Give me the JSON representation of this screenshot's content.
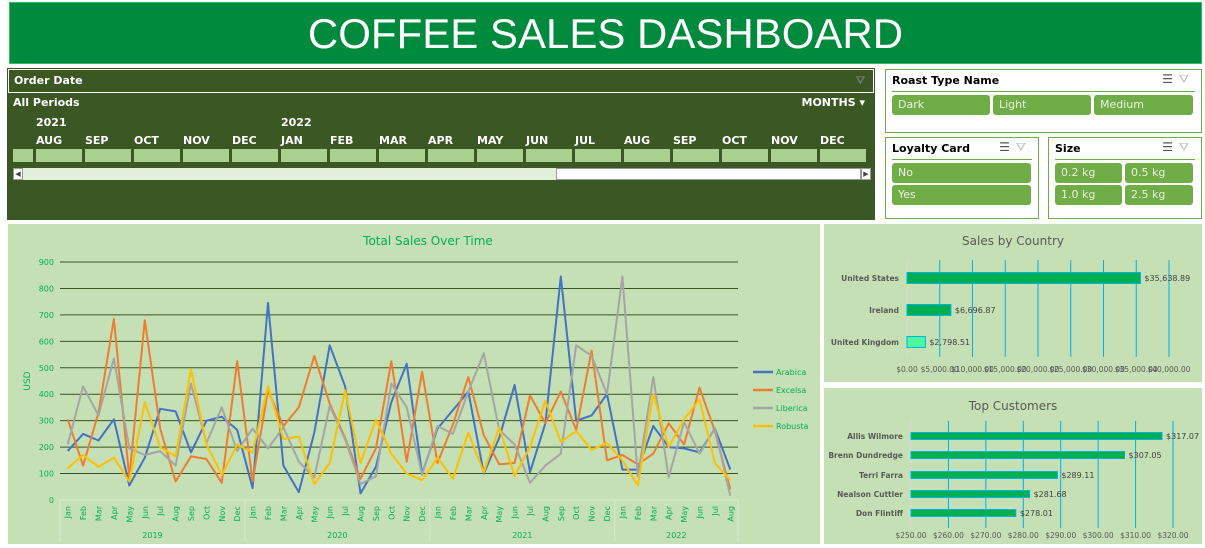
{
  "title": "COFFEE SALES DASHBOARD",
  "timeline": {
    "header": "Order Date",
    "periods": "All Periods",
    "granularity": "MONTHS",
    "years": [
      {
        "label": "2021",
        "at": 1
      },
      {
        "label": "2022",
        "at": 6
      }
    ],
    "months": [
      "AUG",
      "SEP",
      "OCT",
      "NOV",
      "DEC",
      "JAN",
      "FEB",
      "MAR",
      "APR",
      "MAY",
      "JUN",
      "JUL",
      "AUG",
      "SEP",
      "OCT",
      "NOV",
      "DEC"
    ]
  },
  "slicers": {
    "roast": {
      "title": "Roast Type Name",
      "items": [
        "Dark",
        "Light",
        "Medium"
      ]
    },
    "loyalty": {
      "title": "Loyalty Card",
      "items": [
        "No",
        "Yes"
      ]
    },
    "size": {
      "title": "Size",
      "items": [
        "0.2 kg",
        "0.5 kg",
        "1.0 kg",
        "2.5 kg"
      ]
    }
  },
  "chart_data": [
    {
      "type": "line",
      "title": "Total Sales Over Time",
      "ylabel": "USD",
      "ylim": [
        0,
        900
      ],
      "yticks": [
        0,
        100,
        200,
        300,
        400,
        500,
        600,
        700,
        800,
        900
      ],
      "grid": true,
      "legend": "right",
      "years": [
        "2019",
        "2020",
        "2021",
        "2022"
      ],
      "months": [
        "Jan",
        "Feb",
        "Mar",
        "Apr",
        "May",
        "Jun",
        "Jul",
        "Aug",
        "Sep",
        "Oct",
        "Nov",
        "Dec"
      ],
      "series": [
        {
          "name": "Arabica",
          "color": "#4472c4",
          "values": [
            185,
            250,
            225,
            305,
            55,
            160,
            345,
            335,
            180,
            300,
            315,
            265,
            45,
            745,
            130,
            30,
            255,
            585,
            430,
            25,
            125,
            370,
            515,
            100,
            270,
            340,
            410,
            100,
            235,
            435,
            105,
            290,
            845,
            300,
            320,
            400,
            115,
            115,
            280,
            200,
            195,
            180,
            270,
            115
          ]
        },
        {
          "name": "Excelsa",
          "color": "#ed7d31",
          "values": [
            305,
            130,
            330,
            685,
            85,
            680,
            270,
            70,
            165,
            155,
            65,
            525,
            70,
            415,
            280,
            350,
            545,
            365,
            235,
            80,
            195,
            525,
            145,
            485,
            140,
            285,
            465,
            245,
            135,
            140,
            395,
            290,
            410,
            265,
            565,
            150,
            170,
            135,
            175,
            290,
            210,
            425,
            260,
            40
          ]
        },
        {
          "name": "Liberica",
          "color": "#a5a5a5",
          "values": [
            210,
            430,
            320,
            535,
            195,
            170,
            185,
            130,
            440,
            215,
            350,
            185,
            270,
            195,
            275,
            145,
            85,
            355,
            230,
            60,
            90,
            440,
            350,
            95,
            280,
            250,
            410,
            555,
            265,
            210,
            65,
            130,
            175,
            585,
            545,
            400,
            845,
            90,
            465,
            85,
            295,
            175,
            270,
            15
          ]
        },
        {
          "name": "Robusta",
          "color": "#ffc000",
          "values": [
            120,
            170,
            125,
            160,
            70,
            370,
            200,
            165,
            495,
            210,
            95,
            210,
            180,
            430,
            230,
            240,
            60,
            140,
            415,
            140,
            305,
            175,
            100,
            75,
            160,
            80,
            255,
            105,
            275,
            90,
            200,
            375,
            220,
            260,
            190,
            215,
            150,
            55,
            400,
            200,
            305,
            380,
            140,
            75
          ]
        }
      ]
    },
    {
      "type": "bar",
      "title": "Sales by Country",
      "categories": [
        "United States",
        "Ireland",
        "United Kingdom"
      ],
      "values": [
        35638.89,
        6696.87,
        2798.51
      ],
      "labels": [
        "$35,638.89",
        "$6,696.87",
        "$2,798.51"
      ],
      "xlim": [
        0,
        40000
      ],
      "xticks": [
        "$0.00",
        "$5,000.00",
        "$10,000.00",
        "$15,000.00",
        "$20,000.00",
        "$25,000.00",
        "$30,000.00",
        "$35,000.00",
        "$40,000.00"
      ],
      "bar_colors": [
        "#00b050",
        "#00b050",
        "#4dfa9a"
      ]
    },
    {
      "type": "bar",
      "title": "Top Customers",
      "categories": [
        "Allis Wilmore",
        "Brenn Dundredge",
        "Terri Farra",
        "Nealson Cuttler",
        "Don Flintiff"
      ],
      "values": [
        317.07,
        307.05,
        289.11,
        281.68,
        278.01
      ],
      "labels": [
        "$317.07",
        "$307.05",
        "$289.11",
        "$281.68",
        "$278.01"
      ],
      "xlim": [
        250,
        320
      ],
      "xticks": [
        "$250.00",
        "$260.00",
        "$270.00",
        "$280.00",
        "$290.00",
        "$300.00",
        "$310.00",
        "$320.00"
      ],
      "bar_colors": [
        "#00b050"
      ]
    }
  ],
  "colors": {
    "title_bg": "#008a3e",
    "timeline_bg": "#3a5724",
    "chart_bg": "#c5e0b4",
    "slicer_btn": "#70ad47"
  }
}
